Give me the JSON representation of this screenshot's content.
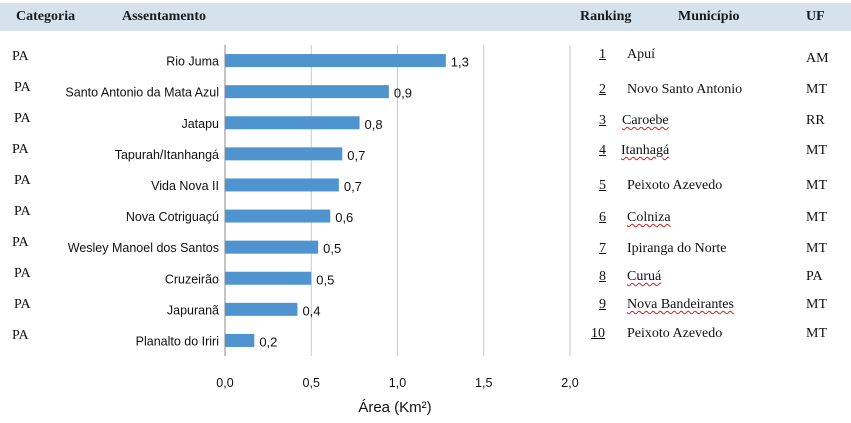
{
  "header": {
    "categoria": "Categoria",
    "assentamento": "Assentamento",
    "ranking": "Ranking",
    "municipio": "Município",
    "uf": "UF"
  },
  "categories_col": [
    "PA",
    "PA",
    "PA",
    "PA",
    "PA",
    "PA",
    "PA",
    "PA",
    "PA",
    "PA"
  ],
  "ranking_rows": [
    {
      "rank": "1",
      "municipio": "Apuí",
      "uf": "AM",
      "wavy": false
    },
    {
      "rank": "2",
      "municipio": "Novo Santo Antonio",
      "uf": "MT",
      "wavy": false
    },
    {
      "rank": "3",
      "municipio": "Caroebe",
      "uf": "RR",
      "wavy": true
    },
    {
      "rank": "4",
      "municipio": "Itanhagá",
      "uf": "MT",
      "wavy": true
    },
    {
      "rank": "5",
      "municipio": "Peixoto Azevedo",
      "uf": "MT",
      "wavy": false
    },
    {
      "rank": "6",
      "municipio": "Colniza",
      "uf": "MT",
      "wavy": true
    },
    {
      "rank": "7",
      "municipio": "Ipiranga do Norte",
      "uf": "MT",
      "wavy": false
    },
    {
      "rank": "8",
      "municipio": "Curuá",
      "uf": "PA",
      "wavy": true
    },
    {
      "rank": "9",
      "municipio": "Nova Bandeirantes",
      "uf": "MT",
      "wavy": true
    },
    {
      "rank": "10",
      "municipio": "Peixoto Azevedo",
      "uf": "MT",
      "wavy": false
    }
  ],
  "chart_data": {
    "type": "bar",
    "orientation": "horizontal",
    "categories": [
      "Rio Juma",
      "Santo Antonio da Mata Azul",
      "Jatapu",
      "Tapurah/Itanhangá",
      "Vida Nova II",
      "Nova Cotriguaçú",
      "Wesley Manoel dos Santos",
      "Cruzeirão",
      "Japuranã",
      "Planalto do Iriri"
    ],
    "values": [
      1.28,
      0.95,
      0.78,
      0.68,
      0.66,
      0.61,
      0.54,
      0.5,
      0.42,
      0.17
    ],
    "value_labels": [
      "1,3",
      "0,9",
      "0,8",
      "0,7",
      "0,7",
      "0,6",
      "0,5",
      "0,5",
      "0,4",
      "0,2"
    ],
    "xlim": [
      0,
      2.0
    ],
    "xticks": [
      0,
      0.5,
      1.0,
      1.5,
      2.0
    ],
    "xtick_labels": [
      "0,0",
      "0,5",
      "1,0",
      "1,5",
      "2,0"
    ],
    "xlabel": "Área (Km²)",
    "bar_color": "#4f93cf",
    "grid": true
  }
}
